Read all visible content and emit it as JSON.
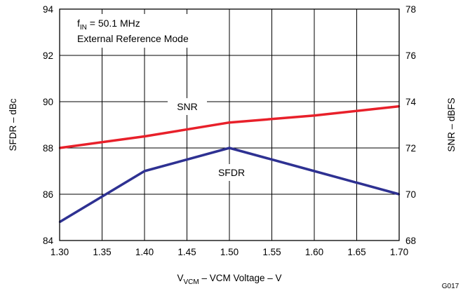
{
  "chart_data": {
    "type": "line",
    "x": [
      1.3,
      1.4,
      1.5,
      1.6,
      1.7
    ],
    "xlim": [
      1.3,
      1.7
    ],
    "x_ticks": [
      "1.30",
      "1.35",
      "1.40",
      "1.45",
      "1.50",
      "1.55",
      "1.60",
      "1.65",
      "1.70"
    ],
    "xlabel_main": "V",
    "xlabel_sub": "VCM",
    "xlabel_rest": " – VCM Voltage – V",
    "ylabel_left": "SFDR – dBc",
    "ylim_left": [
      84,
      94
    ],
    "y_ticks_left": [
      "84",
      "86",
      "88",
      "90",
      "92",
      "94"
    ],
    "ylabel_right": "SNR – dBFS",
    "ylim_right": [
      68,
      78
    ],
    "y_ticks_right": [
      "68",
      "70",
      "72",
      "74",
      "76",
      "78"
    ],
    "grid": true,
    "series": [
      {
        "name": "SNR",
        "axis": "right",
        "color": "#e8202a",
        "x": [
          1.3,
          1.4,
          1.5,
          1.6,
          1.7
        ],
        "values": [
          72.0,
          72.5,
          73.1,
          73.4,
          73.8
        ]
      },
      {
        "name": "SFDR",
        "axis": "left",
        "color": "#2e3192",
        "x": [
          1.3,
          1.4,
          1.5,
          1.6,
          1.7
        ],
        "values": [
          84.8,
          87.0,
          88.0,
          87.0,
          86.0
        ]
      }
    ],
    "annotations": {
      "line1_main": "f",
      "line1_sub": "IN",
      "line1_rest": " = 50.1 MHz",
      "line2": "External Reference Mode"
    },
    "figure_id": "G017"
  }
}
